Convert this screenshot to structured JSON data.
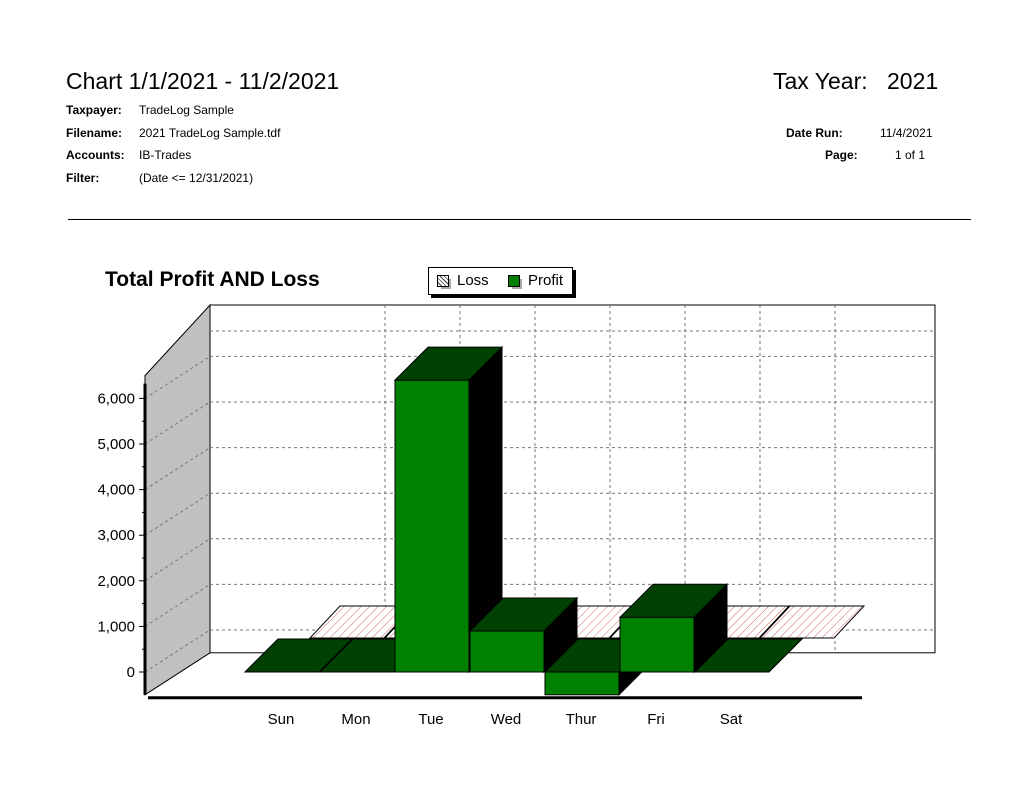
{
  "header": {
    "title": "Chart  1/1/2021 - 11/2/2021",
    "tax_year_label": "Tax Year:",
    "tax_year_value": "2021",
    "taxpayer_label": "Taxpayer:",
    "taxpayer_value": "TradeLog Sample",
    "filename_label": "Filename:",
    "filename_value": "2021 TradeLog Sample.tdf",
    "accounts_label": "Accounts:",
    "accounts_value": "IB-Trades",
    "filter_label": "Filter:",
    "filter_value": "(Date <= 12/31/2021)",
    "date_run_label": "Date Run:",
    "date_run_value": "11/4/2021",
    "page_label": "Page:",
    "page_value": "1 of 1"
  },
  "legend": {
    "loss_label": "Loss",
    "profit_label": "Profit"
  },
  "colors": {
    "profit_front": "#008000",
    "profit_top": "#004000",
    "profit_side": "#000000",
    "loss_hatch": "#cc6666",
    "back_wall": "#c0c0c0"
  },
  "chart_data": {
    "type": "bar",
    "title": "Total Profit AND Loss",
    "xlabel": "",
    "ylabel": "",
    "categories": [
      "Sun",
      "Mon",
      "Tue",
      "Wed",
      "Thur",
      "Fri",
      "Sat"
    ],
    "series": [
      {
        "name": "Loss",
        "values": [
          0,
          0,
          0,
          0,
          0,
          0,
          0
        ]
      },
      {
        "name": "Profit",
        "values": [
          0,
          0,
          6400,
          900,
          -500,
          1200,
          0
        ]
      }
    ],
    "yticks": [
      0,
      1000,
      2000,
      3000,
      4000,
      5000,
      6000
    ],
    "ytick_labels": [
      "0",
      "1,000",
      "2,000",
      "3,000",
      "4,000",
      "5,000",
      "6,000"
    ],
    "ylim": [
      -500,
      6500
    ],
    "grid": true,
    "legend_position": "top"
  }
}
